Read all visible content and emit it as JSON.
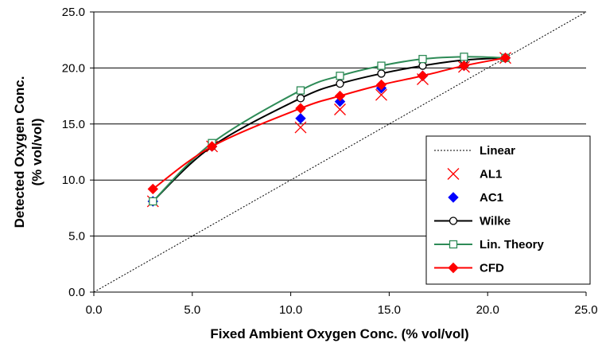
{
  "chart_data": {
    "type": "line",
    "title": "",
    "xlabel": "Fixed Ambient Oxygen Conc. (% vol/vol)",
    "ylabel_line1": "Detected Oxygen Conc.",
    "ylabel_line2": "(% vol/vol)",
    "xlim": [
      0,
      25
    ],
    "ylim": [
      0,
      25
    ],
    "xticks": [
      "0.0",
      "5.0",
      "10.0",
      "15.0",
      "20.0",
      "25.0"
    ],
    "yticks": [
      "0.0",
      "5.0",
      "10.0",
      "15.0",
      "20.0",
      "25.0"
    ],
    "grid": "horizontal",
    "legend_position": "right",
    "series": [
      {
        "name": "Linear",
        "color": "#000000",
        "style": "dotted",
        "marker": "none",
        "x": [
          0,
          25
        ],
        "y": [
          0,
          25
        ]
      },
      {
        "name": "AL1",
        "color": "#ff0000",
        "style": "none",
        "marker": "x",
        "x": [
          3.0,
          6.0,
          10.5,
          12.5,
          14.6,
          16.7,
          18.8,
          20.9
        ],
        "y": [
          8.1,
          13.0,
          14.7,
          16.3,
          17.6,
          19.0,
          20.1,
          20.9
        ]
      },
      {
        "name": "AC1",
        "color": "#0000ff",
        "style": "none",
        "marker": "diamond",
        "x": [
          3.0,
          6.0,
          10.5,
          12.5,
          14.6,
          16.7,
          18.8,
          20.9
        ],
        "y": [
          8.1,
          13.0,
          15.5,
          17.0,
          18.2,
          19.3,
          20.2,
          20.9
        ]
      },
      {
        "name": "Wilke",
        "color": "#000000",
        "style": "solid",
        "marker": "circle",
        "x": [
          3.0,
          6.0,
          10.5,
          12.5,
          14.6,
          16.7,
          18.8,
          20.9
        ],
        "y": [
          8.1,
          13.0,
          17.3,
          18.6,
          19.5,
          20.2,
          20.7,
          20.9
        ]
      },
      {
        "name": "Lin. Theory",
        "color": "#2e8b57",
        "style": "solid",
        "marker": "square",
        "x": [
          3.0,
          6.0,
          10.5,
          12.5,
          14.6,
          16.7,
          18.8,
          20.9
        ],
        "y": [
          8.1,
          13.3,
          18.0,
          19.3,
          20.2,
          20.8,
          21.0,
          20.9
        ]
      },
      {
        "name": "CFD",
        "color": "#ff0000",
        "style": "solid",
        "marker": "diamond",
        "x": [
          3.0,
          6.0,
          10.5,
          12.5,
          14.6,
          16.7,
          18.8,
          20.9
        ],
        "y": [
          9.2,
          13.0,
          16.4,
          17.5,
          18.5,
          19.3,
          20.2,
          20.9
        ]
      }
    ]
  }
}
